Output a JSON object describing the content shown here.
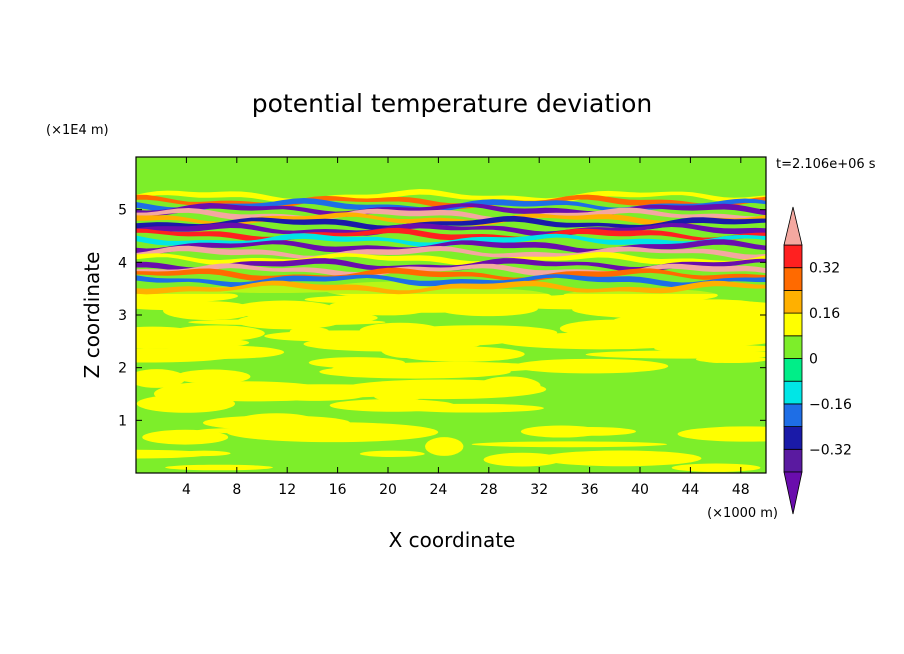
{
  "chart_data": {
    "type": "heatmap",
    "title": "potential temperature deviation",
    "xlabel": "X coordinate",
    "ylabel": "Z coordinate",
    "x_unit": "(×1000 m)",
    "y_unit": "(×1E4 m)",
    "time_label": "t=2.106e+06 s",
    "xlim": [
      0,
      50
    ],
    "ylim": [
      0,
      6
    ],
    "x_ticks": [
      4,
      8,
      12,
      16,
      20,
      24,
      28,
      32,
      36,
      40,
      44,
      48
    ],
    "y_ticks": [
      1,
      2,
      3,
      4,
      5
    ],
    "colorbar": {
      "levels": [
        -0.48,
        -0.4,
        -0.32,
        -0.24,
        -0.16,
        -0.08,
        0,
        0.08,
        0.16,
        0.24,
        0.32,
        0.4,
        0.48
      ],
      "tick_values": [
        0.32,
        0.16,
        0,
        -0.16,
        -0.32
      ],
      "tick_labels": [
        "0.32",
        "0.16",
        "0",
        "−0.16",
        "−0.32"
      ],
      "colors_low_to_high": [
        "#6a0dad",
        "#5a1aa0",
        "#1a1aa8",
        "#1e6ee6",
        "#00e6e6",
        "#00ee88",
        "#7dee2a",
        "#ffff00",
        "#ffb000",
        "#ff6a00",
        "#ff2020",
        "#f4a8a0"
      ],
      "extend": "both"
    },
    "bands": [
      {
        "z": 5.25,
        "value": 0.1
      },
      {
        "z": 5.15,
        "value": 0.3
      },
      {
        "z": 5.08,
        "value": -0.2
      },
      {
        "z": 5.0,
        "value": -0.42
      },
      {
        "z": 4.9,
        "value": 0.44
      },
      {
        "z": 4.82,
        "value": 0.2
      },
      {
        "z": 4.74,
        "value": -0.3
      },
      {
        "z": 4.62,
        "value": -0.44
      },
      {
        "z": 4.52,
        "value": 0.36
      },
      {
        "z": 4.42,
        "value": -0.12
      },
      {
        "z": 4.3,
        "value": -0.44
      },
      {
        "z": 4.18,
        "value": 0.44
      },
      {
        "z": 4.06,
        "value": 0.1
      },
      {
        "z": 3.95,
        "value": -0.44
      },
      {
        "z": 3.85,
        "value": 0.44
      },
      {
        "z": 3.76,
        "value": 0.28
      },
      {
        "z": 3.66,
        "value": -0.18
      },
      {
        "z": 3.52,
        "value": 0.2
      }
    ]
  }
}
